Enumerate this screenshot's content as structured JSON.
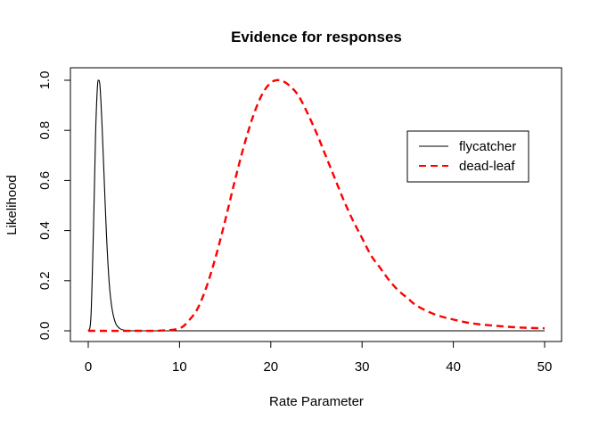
{
  "chart_data": {
    "type": "line",
    "title": "Evidence for responses",
    "xlabel": "Rate Parameter",
    "ylabel": "Likelihood",
    "xlim": [
      0,
      50
    ],
    "ylim": [
      0,
      1
    ],
    "xticks": [
      "0",
      "10",
      "20",
      "30",
      "40",
      "50"
    ],
    "yticks": [
      "0.0",
      "0.2",
      "0.4",
      "0.6",
      "0.8",
      "1.0"
    ],
    "legend_position": "top-right",
    "series": [
      {
        "name": "flycatcher",
        "color": "#000000",
        "dash": "solid",
        "x": [
          0,
          0.3,
          0.6,
          0.8,
          1.0,
          1.15,
          1.3,
          1.5,
          1.7,
          2.0,
          2.3,
          2.6,
          3.0,
          3.5,
          4.0,
          5.0,
          10,
          20,
          30,
          40,
          50
        ],
        "y": [
          0,
          0.06,
          0.45,
          0.78,
          0.97,
          1.0,
          0.97,
          0.83,
          0.65,
          0.38,
          0.19,
          0.09,
          0.03,
          0.008,
          0.002,
          0,
          0,
          0,
          0,
          0,
          0
        ]
      },
      {
        "name": "dead-leaf",
        "color": "#ff0000",
        "dash": "dashed",
        "x": [
          0,
          5,
          8,
          10,
          11,
          12,
          13,
          14,
          15,
          16,
          17,
          18,
          19,
          20,
          21,
          22,
          23,
          24,
          25,
          26,
          27,
          28,
          29,
          30,
          31,
          32,
          33,
          34,
          35,
          36,
          38,
          40,
          42,
          44,
          46,
          48,
          50
        ],
        "y": [
          0,
          0,
          0.001,
          0.01,
          0.04,
          0.09,
          0.18,
          0.3,
          0.44,
          0.59,
          0.73,
          0.85,
          0.94,
          0.99,
          1.0,
          0.98,
          0.94,
          0.87,
          0.79,
          0.7,
          0.61,
          0.52,
          0.44,
          0.37,
          0.3,
          0.25,
          0.2,
          0.16,
          0.13,
          0.1,
          0.065,
          0.045,
          0.03,
          0.022,
          0.016,
          0.012,
          0.01
        ]
      }
    ]
  }
}
